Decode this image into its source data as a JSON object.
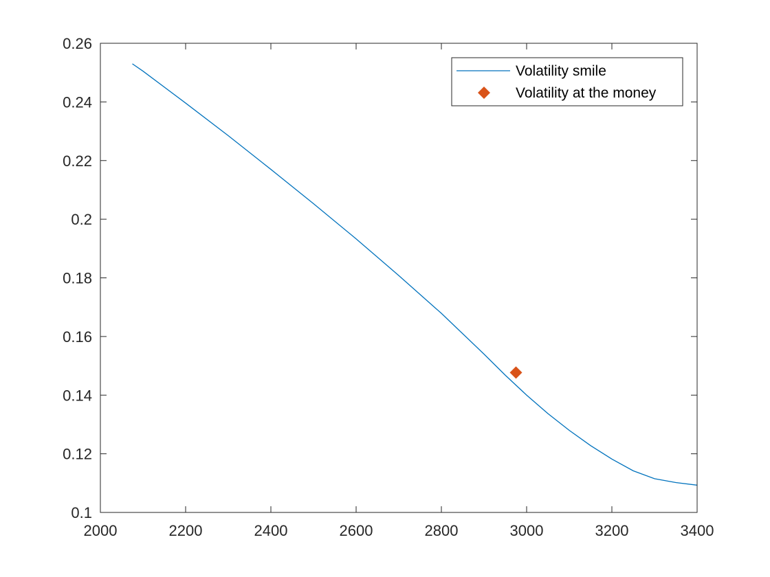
{
  "chart_data": {
    "type": "line",
    "title": "",
    "xlabel": "",
    "ylabel": "",
    "xlim": [
      2000,
      3400
    ],
    "ylim": [
      0.1,
      0.26
    ],
    "x_ticks": [
      2000,
      2200,
      2400,
      2600,
      2800,
      3000,
      3200,
      3400
    ],
    "x_tick_labels": [
      "2000",
      "2200",
      "2400",
      "2600",
      "2800",
      "3000",
      "3200",
      "3400"
    ],
    "y_ticks": [
      0.1,
      0.12,
      0.14,
      0.16,
      0.18,
      0.2,
      0.22,
      0.24,
      0.26
    ],
    "y_tick_labels": [
      "0.1",
      "0.12",
      "0.14",
      "0.16",
      "0.18",
      "0.2",
      "0.22",
      "0.24",
      "0.26"
    ],
    "grid": false,
    "legend_position": "top-right",
    "series": [
      {
        "name": "Volatility smile",
        "style": "line",
        "color": "#0072BD",
        "x": [
          2075,
          2100,
          2200,
          2300,
          2400,
          2500,
          2600,
          2700,
          2800,
          2900,
          2950,
          3000,
          3050,
          3100,
          3150,
          3200,
          3250,
          3300,
          3350,
          3400
        ],
        "y": [
          0.253,
          0.2505,
          0.2396,
          0.2285,
          0.217,
          0.2053,
          0.1933,
          0.1808,
          0.1679,
          0.154,
          0.1468,
          0.14,
          0.1337,
          0.128,
          0.1228,
          0.1182,
          0.1142,
          0.1115,
          0.1102,
          0.1093
        ]
      },
      {
        "name": "Volatility at the money",
        "style": "marker",
        "marker": "diamond",
        "color": "#D95319",
        "x": [
          2975
        ],
        "y": [
          0.1477
        ]
      }
    ]
  }
}
